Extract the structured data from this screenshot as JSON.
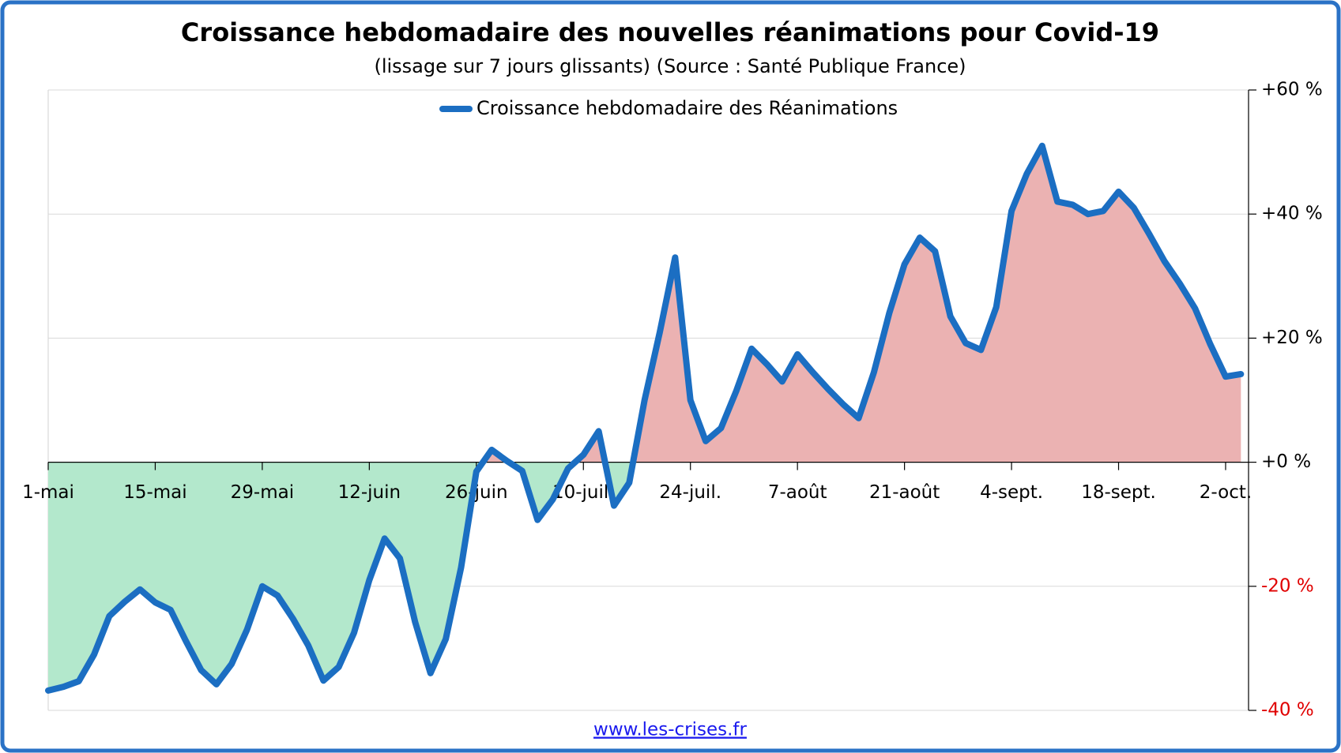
{
  "chart_data": {
    "type": "area-line",
    "title": "Croissance hebdomadaire des nouvelles réanimations pour Covid-19",
    "subtitle": "(lissage sur 7 jours glissants) (Source : Santé Publique France)",
    "footer": "www.les-crises.fr",
    "categories": [
      "1-mai",
      null,
      null,
      null,
      null,
      null,
      null,
      "15-mai",
      null,
      null,
      null,
      null,
      null,
      null,
      "29-mai",
      null,
      null,
      null,
      null,
      null,
      null,
      "12-juin",
      null,
      null,
      null,
      null,
      null,
      null,
      "26-juin",
      null,
      null,
      null,
      null,
      null,
      null,
      "10-juil.",
      null,
      null,
      null,
      null,
      null,
      null,
      "24-juil.",
      null,
      null,
      null,
      null,
      null,
      null,
      "7-août",
      null,
      null,
      null,
      null,
      null,
      null,
      "21-août",
      null,
      null,
      null,
      null,
      null,
      null,
      "4-sept.",
      null,
      null,
      null,
      null,
      null,
      null,
      "18-sept.",
      null,
      null,
      null,
      null,
      null,
      null,
      "2-oct.",
      null
    ],
    "series": [
      {
        "name": "Croissance hebdomadaire des Réanimations",
        "color": "#1b6ec2",
        "values": [
          -36.8,
          -36.2,
          -35.3,
          -31,
          -24.8,
          -22.5,
          -20.5,
          -22.6,
          -23.8,
          -28.8,
          -33.5,
          -35.8,
          -32.5,
          -27,
          -20,
          -21.5,
          -25.2,
          -29.5,
          -35.2,
          -33,
          -27.5,
          -19,
          -12.3,
          -15.5,
          -25.8,
          -34,
          -28.5,
          -17,
          -1.5,
          2,
          0.2,
          -1.4,
          -9.3,
          -6,
          -1,
          1.2,
          5,
          -7,
          -3.3,
          10,
          21,
          33,
          10,
          3.4,
          5.5,
          11.5,
          18.3,
          15.8,
          13,
          17.4,
          14.5,
          11.8,
          9.3,
          7.1,
          14.5,
          24,
          31.9,
          36.2,
          34,
          23.5,
          19.2,
          18.1,
          25,
          40.5,
          46.5,
          51,
          42,
          41.5,
          40,
          40.5,
          43.6,
          41,
          36.8,
          32.4,
          28.8,
          24.8,
          19,
          13.8,
          14.2
        ]
      }
    ],
    "positive_fill": "#ebb2b2",
    "negative_fill": "#b3e8cc",
    "negative_tick_color": "#e00000",
    "ylim": [
      -40,
      60
    ],
    "yticks": [
      {
        "value": -40,
        "label": "-40 %"
      },
      {
        "value": -20,
        "label": "-20 %"
      },
      {
        "value": 0,
        "label": "+0 %"
      },
      {
        "value": 20,
        "label": "+20 %"
      },
      {
        "value": 40,
        "label": "+40 %"
      },
      {
        "value": 60,
        "label": "+60 %"
      }
    ],
    "grid": true,
    "legend": "top"
  }
}
